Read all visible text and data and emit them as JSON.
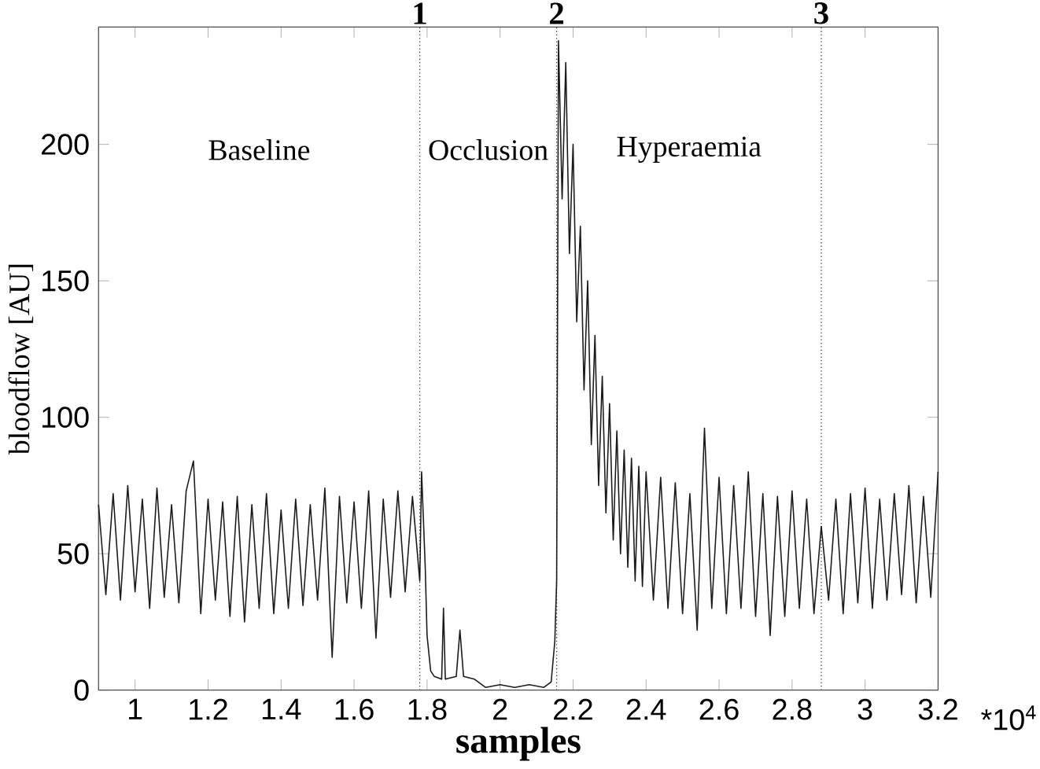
{
  "chart_data": {
    "type": "line",
    "xlabel": "samples",
    "ylabel": "bloodflow [AU]",
    "xlim": [
      0.9,
      3.2
    ],
    "ylim": [
      0,
      243
    ],
    "xticks": [
      1,
      1.2,
      1.4,
      1.6,
      1.8,
      2,
      2.2,
      2.4,
      2.6,
      2.8,
      3,
      3.2
    ],
    "yticks": [
      0,
      50,
      100,
      150,
      200
    ],
    "marker": "none",
    "line_style": "solid",
    "ref_lines": [
      {
        "axis": "x",
        "value": 1.78,
        "line_style": "dotted"
      },
      {
        "axis": "x",
        "value": 2.155,
        "line_style": "dotted"
      },
      {
        "axis": "x",
        "value": 2.88,
        "line_style": "dotted"
      }
    ],
    "annotations": [
      "1",
      "2",
      "3",
      "Baseline",
      "Occlusion",
      "Hyperaemia",
      "*10$^{4}$"
    ],
    "series": [
      {
        "color": "#1a1a1a",
        "x": [
          0.9,
          0.92,
          0.94,
          0.96,
          0.98,
          1.0,
          1.02,
          1.04,
          1.06,
          1.08,
          1.1,
          1.12,
          1.14,
          1.16,
          1.18,
          1.2,
          1.22,
          1.24,
          1.26,
          1.28,
          1.3,
          1.32,
          1.34,
          1.36,
          1.38,
          1.4,
          1.42,
          1.44,
          1.46,
          1.48,
          1.5,
          1.52,
          1.54,
          1.56,
          1.58,
          1.6,
          1.62,
          1.64,
          1.66,
          1.68,
          1.7,
          1.72,
          1.74,
          1.76,
          1.78,
          1.785,
          1.795,
          1.8,
          1.81,
          1.82,
          1.84,
          1.845,
          1.85,
          1.88,
          1.89,
          1.9,
          1.93,
          1.96,
          2.0,
          2.04,
          2.08,
          2.12,
          2.14,
          2.15,
          2.155,
          2.16,
          2.17,
          2.18,
          2.19,
          2.2,
          2.21,
          2.22,
          2.23,
          2.24,
          2.25,
          2.26,
          2.27,
          2.28,
          2.29,
          2.3,
          2.31,
          2.32,
          2.33,
          2.34,
          2.35,
          2.36,
          2.37,
          2.38,
          2.39,
          2.4,
          2.42,
          2.44,
          2.46,
          2.48,
          2.5,
          2.52,
          2.54,
          2.56,
          2.58,
          2.6,
          2.62,
          2.64,
          2.66,
          2.68,
          2.7,
          2.72,
          2.74,
          2.76,
          2.78,
          2.8,
          2.82,
          2.84,
          2.86,
          2.88,
          2.9,
          2.92,
          2.94,
          2.96,
          2.98,
          3.0,
          3.02,
          3.04,
          3.06,
          3.08,
          3.1,
          3.12,
          3.14,
          3.16,
          3.18,
          3.2
        ],
        "values": [
          68,
          35,
          72,
          33,
          75,
          36,
          70,
          30,
          74,
          34,
          68,
          32,
          73,
          84,
          28,
          70,
          33,
          69,
          27,
          71,
          25,
          68,
          30,
          72,
          28,
          66,
          30,
          70,
          31,
          68,
          33,
          74,
          12,
          71,
          32,
          69,
          30,
          73,
          19,
          70,
          34,
          73,
          36,
          71,
          40,
          80,
          45,
          20,
          7,
          5,
          4,
          30,
          4,
          5,
          22,
          5,
          4,
          1,
          2,
          1,
          2,
          1,
          3,
          18,
          40,
          238,
          180,
          230,
          160,
          200,
          135,
          170,
          110,
          150,
          90,
          130,
          75,
          115,
          65,
          105,
          55,
          95,
          50,
          88,
          45,
          85,
          40,
          82,
          38,
          80,
          33,
          78,
          30,
          76,
          28,
          72,
          22,
          96,
          30,
          78,
          28,
          75,
          30,
          80,
          27,
          72,
          20,
          71,
          27,
          73,
          30,
          70,
          28,
          60,
          33,
          70,
          28,
          72,
          32,
          74,
          30,
          70,
          33,
          72,
          35,
          75,
          32,
          71,
          34,
          80
        ]
      }
    ]
  }
}
